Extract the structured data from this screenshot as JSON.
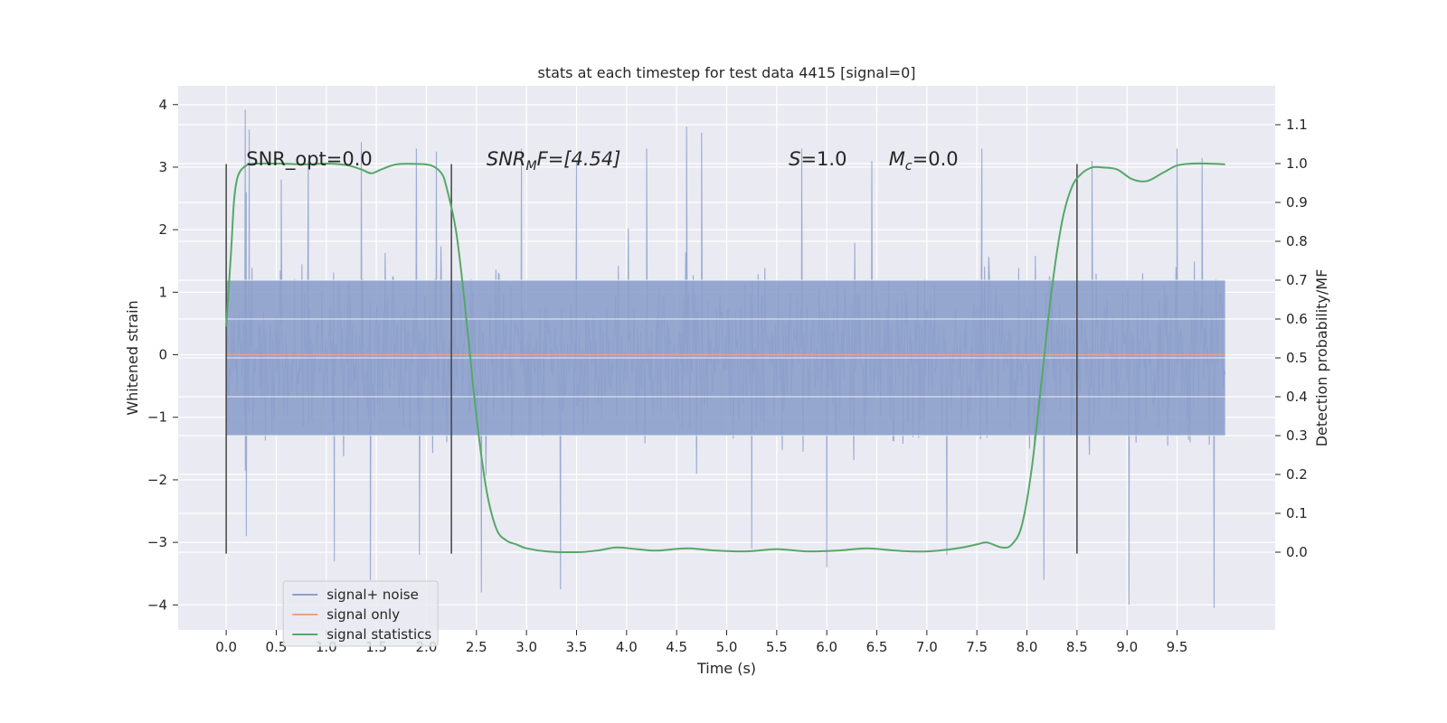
{
  "chart_data": {
    "type": "line",
    "title": "stats at each timestep for test data 4415 [signal=0]",
    "xlabel": "Time (s)",
    "ylabel_left": "Whitened strain",
    "ylabel_right": "Detection probability/MF",
    "xlim": [
      -0.48,
      10.48
    ],
    "ylim_left": [
      -4.4,
      4.3
    ],
    "ylim_right": [
      -0.2,
      1.2
    ],
    "x_ticks": [
      0.0,
      0.5,
      1.0,
      1.5,
      2.0,
      2.5,
      3.0,
      3.5,
      4.0,
      4.5,
      5.0,
      5.5,
      6.0,
      6.5,
      7.0,
      7.5,
      8.0,
      8.5,
      9.0,
      9.5
    ],
    "x_tick_labels": [
      "0.0",
      "0.5",
      "1.0",
      "1.5",
      "2.0",
      "2.5",
      "3.0",
      "3.5",
      "4.0",
      "4.5",
      "5.0",
      "5.5",
      "6.0",
      "6.5",
      "7.0",
      "7.5",
      "8.0",
      "8.5",
      "9.0",
      "9.5"
    ],
    "y_left_ticks": [
      -4,
      -3,
      -2,
      -1,
      0,
      1,
      2,
      3,
      4
    ],
    "y_left_tick_labels": [
      "−4",
      "−3",
      "−2",
      "−1",
      "0",
      "1",
      "2",
      "3",
      "4"
    ],
    "y_right_ticks": [
      0.0,
      0.1,
      0.2,
      0.3,
      0.4,
      0.5,
      0.6,
      0.7,
      0.8,
      0.9,
      1.0,
      1.1
    ],
    "y_right_tick_labels": [
      "0.0",
      "0.1",
      "0.2",
      "0.3",
      "0.4",
      "0.5",
      "0.6",
      "0.7",
      "0.8",
      "0.9",
      "1.0",
      "1.1"
    ],
    "grid": true,
    "legend_position": "lower-left",
    "annotations": {
      "snr_opt": "SNR_opt=0.0",
      "snr_mf_main": "SNR",
      "snr_mf_sub": "M",
      "snr_mf_tail": "F=[4.54]",
      "s_main": "S",
      "s_tail": "=1.0",
      "mc_main": "M",
      "mc_sub": "c",
      "mc_tail": "=0.0"
    },
    "vertical_markers": [
      0.0,
      2.25,
      8.5
    ],
    "series": [
      {
        "name": "signal+ noise",
        "axis": "left",
        "color": "#8da0cb",
        "x_range": [
          0.0,
          9.98
        ],
        "envelope_dense": [
          -1.3,
          1.2
        ],
        "envelope_typical": [
          -2.4,
          2.4
        ],
        "spike_peaks": [
          {
            "x": 0.2,
            "y": 2.6
          },
          {
            "x": 0.2,
            "y": -2.9
          },
          {
            "x": 0.19,
            "y": 3.92
          },
          {
            "x": 0.23,
            "y": 3.6
          },
          {
            "x": 0.55,
            "y": 2.8
          },
          {
            "x": 0.82,
            "y": 3.1
          },
          {
            "x": 1.08,
            "y": -3.3
          },
          {
            "x": 1.35,
            "y": 3.4
          },
          {
            "x": 1.44,
            "y": -3.6
          },
          {
            "x": 1.9,
            "y": 3.3
          },
          {
            "x": 1.93,
            "y": -3.2
          },
          {
            "x": 2.1,
            "y": 3.25
          },
          {
            "x": 2.55,
            "y": -3.8
          },
          {
            "x": 2.95,
            "y": 3.3
          },
          {
            "x": 3.34,
            "y": -3.75
          },
          {
            "x": 3.5,
            "y": 3.1
          },
          {
            "x": 4.2,
            "y": 3.3
          },
          {
            "x": 4.6,
            "y": 3.65
          },
          {
            "x": 4.75,
            "y": 3.55
          },
          {
            "x": 5.25,
            "y": -3.1
          },
          {
            "x": 5.75,
            "y": 3.3
          },
          {
            "x": 6.0,
            "y": -3.4
          },
          {
            "x": 6.45,
            "y": 3.1
          },
          {
            "x": 7.2,
            "y": -3.2
          },
          {
            "x": 7.55,
            "y": 3.3
          },
          {
            "x": 8.17,
            "y": -3.6
          },
          {
            "x": 8.65,
            "y": 3.1
          },
          {
            "x": 9.02,
            "y": -4.0
          },
          {
            "x": 9.5,
            "y": 3.3
          },
          {
            "x": 9.87,
            "y": -4.05
          },
          {
            "x": 9.75,
            "y": 3.15
          }
        ]
      },
      {
        "name": "signal only",
        "axis": "left",
        "color": "#e9a184",
        "x": [
          0.0,
          9.98
        ],
        "y": [
          0.0,
          0.0
        ]
      },
      {
        "name": "signal statistics",
        "axis": "right",
        "color": "#55a868",
        "x": [
          0.0,
          0.05,
          0.08,
          0.12,
          0.2,
          0.3,
          0.5,
          0.8,
          1.0,
          1.2,
          1.35,
          1.45,
          1.55,
          1.7,
          1.9,
          2.05,
          2.15,
          2.2,
          2.3,
          2.4,
          2.5,
          2.6,
          2.7,
          2.8,
          2.9,
          3.0,
          3.2,
          3.5,
          3.7,
          3.9,
          4.1,
          4.3,
          4.6,
          4.9,
          5.2,
          5.5,
          5.8,
          6.1,
          6.4,
          6.7,
          7.0,
          7.3,
          7.5,
          7.6,
          7.75,
          7.85,
          7.95,
          8.05,
          8.15,
          8.25,
          8.35,
          8.45,
          8.55,
          8.65,
          8.75,
          8.9,
          9.05,
          9.2,
          9.35,
          9.5,
          9.65,
          9.8,
          9.98
        ],
        "y": [
          0.58,
          0.78,
          0.91,
          0.97,
          0.995,
          1.0,
          1.0,
          0.998,
          1.0,
          0.996,
          0.985,
          0.975,
          0.985,
          0.998,
          0.999,
          0.995,
          0.975,
          0.94,
          0.82,
          0.6,
          0.35,
          0.16,
          0.06,
          0.03,
          0.02,
          0.01,
          0.002,
          0.0,
          0.004,
          0.012,
          0.008,
          0.004,
          0.01,
          0.004,
          0.002,
          0.008,
          0.002,
          0.004,
          0.01,
          0.004,
          0.002,
          0.01,
          0.02,
          0.025,
          0.012,
          0.02,
          0.07,
          0.22,
          0.45,
          0.68,
          0.85,
          0.94,
          0.975,
          0.99,
          0.99,
          0.985,
          0.96,
          0.955,
          0.975,
          0.995,
          1.0,
          1.0,
          0.998
        ]
      }
    ]
  }
}
